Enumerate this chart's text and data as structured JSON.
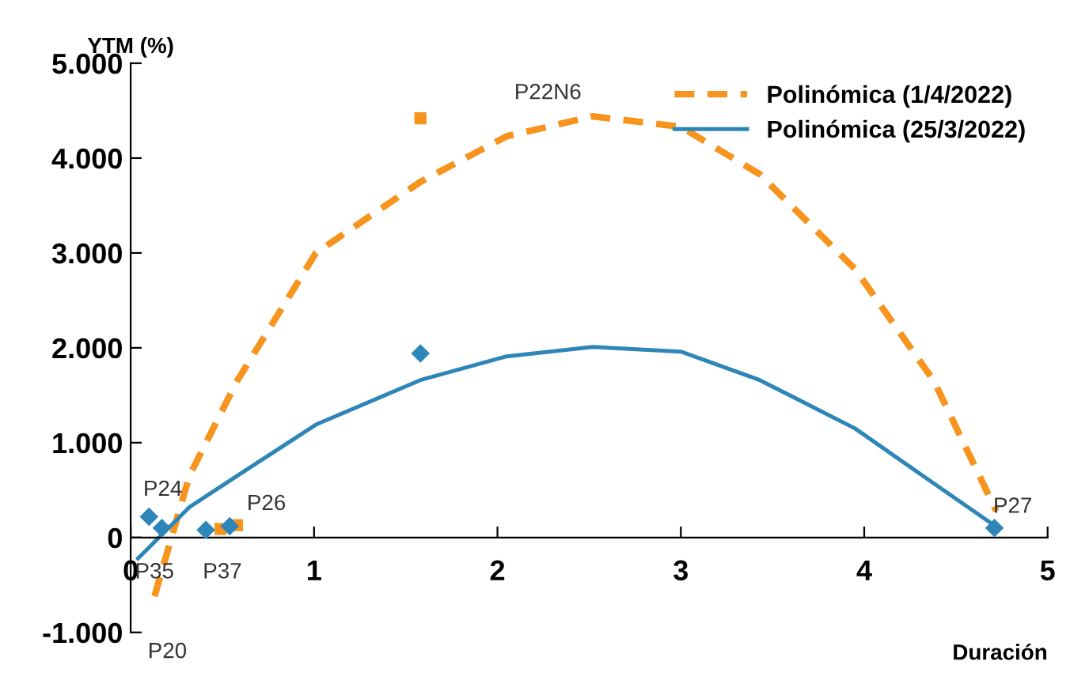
{
  "chart_data": {
    "type": "scatter",
    "ylabel": "YTM (%)",
    "xlabel": "Duración",
    "xlim": [
      0,
      5
    ],
    "xticks": [
      0,
      1,
      2,
      3,
      4,
      5
    ],
    "ylim": [
      -1000,
      5000
    ],
    "yticks": [
      {
        "value": -1000,
        "label": "-1.000"
      },
      0,
      {
        "value": 1000,
        "label": "1.000"
      },
      {
        "value": 2000,
        "label": "2.000"
      },
      {
        "value": 3000,
        "label": "3.000"
      },
      {
        "value": 4000,
        "label": "4.000"
      },
      {
        "value": 5000,
        "label": "5.000"
      }
    ],
    "grid": false,
    "legend": "top right",
    "series": [
      {
        "color": "#f7941d",
        "marker": "square",
        "x": [
          0.49,
          0.58,
          1.58
        ],
        "values": [
          90,
          130,
          4420
        ]
      },
      {
        "color": "#2e86b8",
        "marker": "diamond",
        "x": [
          0.1,
          0.17,
          0.41,
          0.54,
          1.58,
          4.71
        ],
        "values": [
          220,
          100,
          80,
          120,
          1940,
          100
        ]
      },
      {
        "type": "line",
        "name": "Polinómica (1/4/2022)",
        "color": "#f7941d",
        "line_style": "dashed",
        "x": [
          0.13,
          0.32,
          0.58,
          1.01,
          1.58,
          2.05,
          2.52,
          3.0,
          3.43,
          3.95,
          4.38,
          4.72
        ],
        "values": [
          -620,
          650,
          1650,
          3000,
          3750,
          4230,
          4440,
          4330,
          3830,
          2830,
          1650,
          280
        ]
      },
      {
        "type": "line",
        "name": "Polinómica (25/3/2022)",
        "color": "#2e86b8",
        "line_style": "solid",
        "x": [
          0.04,
          0.32,
          0.58,
          1.01,
          1.58,
          2.05,
          2.52,
          3.0,
          3.43,
          3.95,
          4.38,
          4.73
        ],
        "values": [
          -220,
          320,
          650,
          1190,
          1660,
          1910,
          2010,
          1960,
          1660,
          1150,
          570,
          100
        ]
      }
    ],
    "annotations": [
      "P22N6",
      "P24",
      "P26",
      "P27",
      "P35",
      "P37",
      "P20"
    ]
  }
}
